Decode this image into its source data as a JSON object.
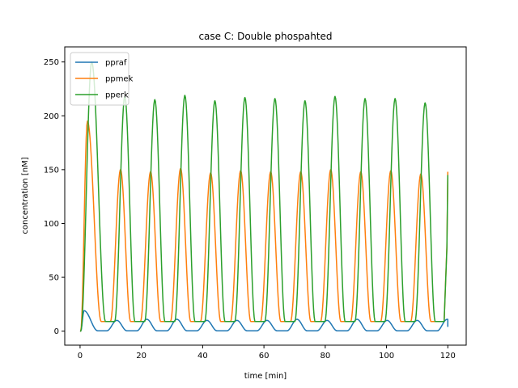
{
  "chart_data": {
    "type": "line",
    "title": "case C: Double phospahted",
    "xlabel": "time [min]",
    "ylabel": "concentration [nM]",
    "xlim": [
      -5,
      126
    ],
    "ylim": [
      -13,
      264
    ],
    "xticks": [
      0,
      20,
      40,
      60,
      80,
      100,
      120
    ],
    "xtick_labels": [
      "0",
      "20",
      "40",
      "60",
      "80",
      "100",
      "120"
    ],
    "yticks": [
      0,
      50,
      100,
      150,
      200,
      250
    ],
    "ytick_labels": [
      "0",
      "50",
      "100",
      "150",
      "200",
      "250"
    ],
    "grid": false,
    "legend_position": "top-left",
    "x_end": 120,
    "series": [
      {
        "name": "ppraf",
        "color": "#1f77b4",
        "start_value": 0,
        "end_value": 4,
        "baseline": 0.3,
        "peaks": [
          [
            1.3,
            19
          ],
          [
            12.0,
            10
          ],
          [
            21.8,
            11
          ],
          [
            31.6,
            11
          ],
          [
            41.4,
            10
          ],
          [
            51.2,
            10
          ],
          [
            61.0,
            10
          ],
          [
            70.8,
            11
          ],
          [
            80.6,
            10
          ],
          [
            90.4,
            11
          ],
          [
            100.2,
            10
          ],
          [
            110.0,
            10
          ],
          [
            119.8,
            11
          ]
        ]
      },
      {
        "name": "ppmek",
        "color": "#ff7f0e",
        "start_value": 0,
        "end_value": 148,
        "baseline": 9,
        "peaks": [
          [
            2.4,
            195
          ],
          [
            13.2,
            150
          ],
          [
            23.0,
            148
          ],
          [
            32.8,
            151
          ],
          [
            42.6,
            147
          ],
          [
            52.4,
            149
          ],
          [
            62.2,
            148
          ],
          [
            72.0,
            148
          ],
          [
            81.8,
            150
          ],
          [
            91.6,
            148
          ],
          [
            101.4,
            149
          ],
          [
            111.2,
            146
          ]
        ]
      },
      {
        "name": "pperk",
        "color": "#2ca02c",
        "start_value": 0,
        "end_value": 145,
        "baseline": 9,
        "peaks": [
          [
            3.8,
            250
          ],
          [
            14.6,
            218
          ],
          [
            24.4,
            215
          ],
          [
            34.2,
            219
          ],
          [
            44.0,
            214
          ],
          [
            53.8,
            217
          ],
          [
            63.6,
            216
          ],
          [
            73.4,
            214
          ],
          [
            83.2,
            218
          ],
          [
            93.0,
            216
          ],
          [
            102.8,
            216
          ],
          [
            112.6,
            212
          ]
        ]
      }
    ]
  }
}
